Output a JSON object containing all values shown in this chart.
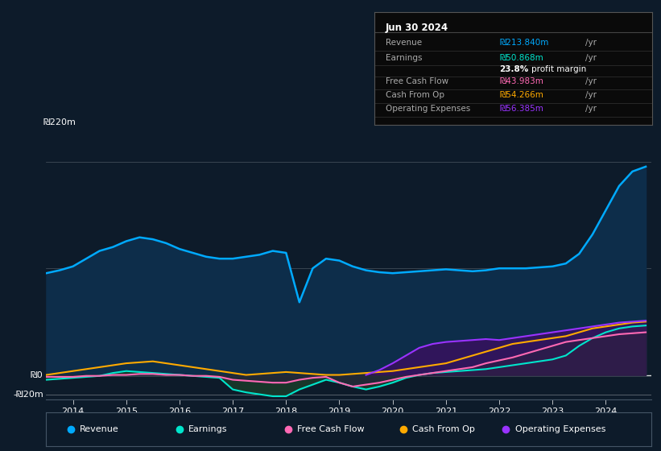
{
  "bg_color": "#0d1b2a",
  "chart_bg": "#0d1b2a",
  "revenue_color": "#00aaff",
  "earnings_color": "#00e5cc",
  "fcf_color": "#ff69b4",
  "cashfromop_color": "#ffaa00",
  "opex_color": "#9933ff",
  "legend_items": [
    "Revenue",
    "Earnings",
    "Free Cash Flow",
    "Cash From Op",
    "Operating Expenses"
  ],
  "legend_colors": [
    "#00aaff",
    "#00e5cc",
    "#ff69b4",
    "#ffaa00",
    "#9933ff"
  ],
  "table_header": "Jun 30 2024",
  "ylim": [
    -25,
    245
  ],
  "xlim": [
    2013.5,
    2024.85
  ],
  "xticks": [
    2014,
    2015,
    2016,
    2017,
    2018,
    2019,
    2020,
    2021,
    2022,
    2023,
    2024
  ],
  "revenue_x": [
    2013.5,
    2013.75,
    2014.0,
    2014.25,
    2014.5,
    2014.75,
    2015.0,
    2015.25,
    2015.5,
    2015.75,
    2016.0,
    2016.25,
    2016.5,
    2016.75,
    2017.0,
    2017.25,
    2017.5,
    2017.75,
    2018.0,
    2018.25,
    2018.5,
    2018.75,
    2019.0,
    2019.25,
    2019.5,
    2019.75,
    2020.0,
    2020.25,
    2020.5,
    2020.75,
    2021.0,
    2021.25,
    2021.5,
    2021.75,
    2022.0,
    2022.25,
    2022.5,
    2022.75,
    2023.0,
    2023.25,
    2023.5,
    2023.75,
    2024.0,
    2024.25,
    2024.5,
    2024.75
  ],
  "revenue_y": [
    105,
    108,
    112,
    120,
    128,
    132,
    138,
    142,
    140,
    136,
    130,
    126,
    122,
    120,
    120,
    122,
    124,
    128,
    126,
    75,
    110,
    120,
    118,
    112,
    108,
    106,
    105,
    106,
    107,
    108,
    109,
    108,
    107,
    108,
    110,
    110,
    110,
    111,
    112,
    115,
    125,
    145,
    170,
    195,
    210,
    215
  ],
  "earnings_x": [
    2013.5,
    2013.75,
    2014.0,
    2014.25,
    2014.5,
    2014.75,
    2015.0,
    2015.25,
    2015.5,
    2015.75,
    2016.0,
    2016.25,
    2016.5,
    2016.75,
    2017.0,
    2017.25,
    2017.5,
    2017.75,
    2018.0,
    2018.25,
    2018.5,
    2018.75,
    2019.0,
    2019.25,
    2019.5,
    2019.75,
    2020.0,
    2020.25,
    2020.5,
    2020.75,
    2021.0,
    2021.25,
    2021.5,
    2021.75,
    2022.0,
    2022.25,
    2022.5,
    2022.75,
    2023.0,
    2023.25,
    2023.5,
    2023.75,
    2024.0,
    2024.25,
    2024.5,
    2024.75
  ],
  "earnings_y": [
    -5,
    -4,
    -3,
    -2,
    -1,
    2,
    4,
    3,
    2,
    1,
    0,
    -1,
    -2,
    -3,
    -15,
    -18,
    -20,
    -22,
    -22,
    -15,
    -10,
    -5,
    -8,
    -12,
    -15,
    -12,
    -8,
    -3,
    0,
    2,
    3,
    4,
    5,
    6,
    8,
    10,
    12,
    14,
    16,
    20,
    30,
    38,
    44,
    48,
    50,
    51
  ],
  "fcf_x": [
    2013.5,
    2013.75,
    2014.0,
    2014.25,
    2014.5,
    2014.75,
    2015.0,
    2015.25,
    2015.5,
    2015.75,
    2016.0,
    2016.25,
    2016.5,
    2016.75,
    2017.0,
    2017.25,
    2017.5,
    2017.75,
    2018.0,
    2018.25,
    2018.5,
    2018.75,
    2019.0,
    2019.25,
    2019.5,
    2019.75,
    2020.0,
    2020.25,
    2020.5,
    2020.75,
    2021.0,
    2021.25,
    2021.5,
    2021.75,
    2022.0,
    2022.25,
    2022.5,
    2022.75,
    2023.0,
    2023.25,
    2023.5,
    2023.75,
    2024.0,
    2024.25,
    2024.5,
    2024.75
  ],
  "fcf_y": [
    -2,
    -2,
    -2,
    -1,
    -1,
    0,
    0,
    1,
    1,
    0,
    0,
    -1,
    -1,
    -2,
    -5,
    -6,
    -7,
    -8,
    -8,
    -5,
    -3,
    -2,
    -8,
    -12,
    -10,
    -8,
    -5,
    -2,
    0,
    2,
    4,
    6,
    8,
    12,
    15,
    18,
    22,
    26,
    30,
    34,
    36,
    38,
    40,
    42,
    43,
    44
  ],
  "cashfromop_x": [
    2013.5,
    2013.75,
    2014.0,
    2014.25,
    2014.5,
    2014.75,
    2015.0,
    2015.25,
    2015.5,
    2015.75,
    2016.0,
    2016.25,
    2016.5,
    2016.75,
    2017.0,
    2017.25,
    2017.5,
    2017.75,
    2018.0,
    2018.25,
    2018.5,
    2018.75,
    2019.0,
    2019.25,
    2019.5,
    2019.75,
    2020.0,
    2020.25,
    2020.5,
    2020.75,
    2021.0,
    2021.25,
    2021.5,
    2021.75,
    2022.0,
    2022.25,
    2022.5,
    2022.75,
    2023.0,
    2023.25,
    2023.5,
    2023.75,
    2024.0,
    2024.25,
    2024.5,
    2024.75
  ],
  "cashfromop_y": [
    0,
    2,
    4,
    6,
    8,
    10,
    12,
    13,
    14,
    12,
    10,
    8,
    6,
    4,
    2,
    0,
    1,
    2,
    3,
    2,
    1,
    0,
    0,
    1,
    2,
    3,
    4,
    6,
    8,
    10,
    12,
    16,
    20,
    24,
    28,
    32,
    34,
    36,
    38,
    40,
    44,
    48,
    50,
    52,
    54,
    55
  ],
  "opex_x": [
    2019.5,
    2019.75,
    2020.0,
    2020.25,
    2020.5,
    2020.75,
    2021.0,
    2021.25,
    2021.5,
    2021.75,
    2022.0,
    2022.25,
    2022.5,
    2022.75,
    2023.0,
    2023.25,
    2023.5,
    2023.75,
    2024.0,
    2024.25,
    2024.5,
    2024.75
  ],
  "opex_y": [
    0,
    5,
    12,
    20,
    28,
    32,
    34,
    35,
    36,
    37,
    36,
    38,
    40,
    42,
    44,
    46,
    48,
    50,
    52,
    54,
    55,
    56
  ]
}
